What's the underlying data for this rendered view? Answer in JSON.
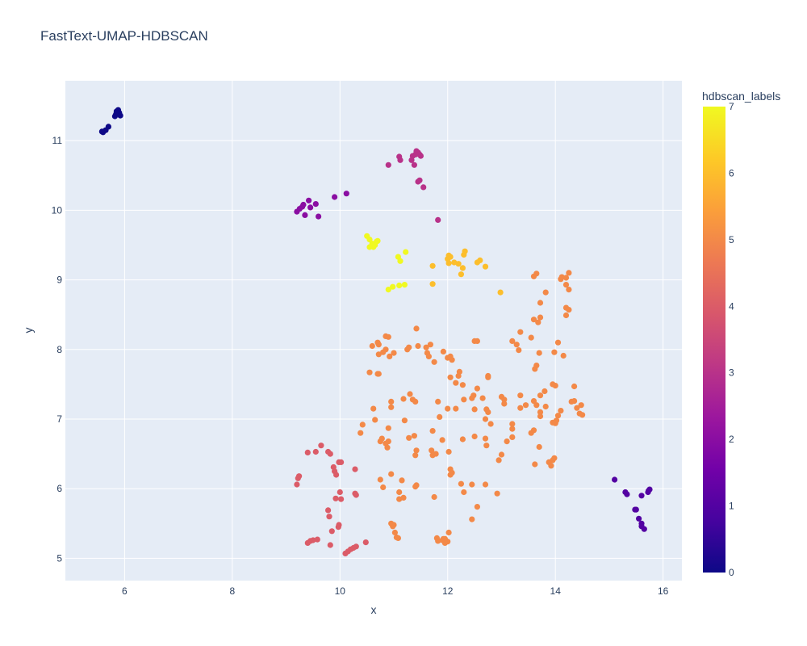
{
  "chart_data": {
    "type": "scatter",
    "title": "FastText-UMAP-HDBSCAN",
    "xlabel": "x",
    "ylabel": "y",
    "xlim": [
      4.9,
      16.35
    ],
    "ylim": [
      4.68,
      11.86
    ],
    "x_ticks": [
      6,
      8,
      10,
      12,
      14,
      16
    ],
    "y_ticks": [
      5,
      6,
      7,
      8,
      9,
      10,
      11
    ],
    "grid": true,
    "colorbar": {
      "title": "hdbscan_labels",
      "range": [
        0,
        7
      ],
      "ticks": [
        0,
        1,
        2,
        3,
        4,
        5,
        6,
        7
      ],
      "colorscale": [
        "#0d0887",
        "#46039f",
        "#7201a8",
        "#9c179e",
        "#bd3786",
        "#d8576b",
        "#ed7953",
        "#fb9f3a",
        "#fdca26",
        "#f0f921"
      ]
    },
    "colors": {
      "plot_bg": "#e5ecf6",
      "grid": "#ffffff",
      "text": "#2a3f5f"
    },
    "points": [
      [
        5.6,
        11.12,
        0
      ],
      [
        5.65,
        11.15,
        0
      ],
      [
        5.58,
        11.13,
        0
      ],
      [
        5.7,
        11.2,
        0
      ],
      [
        5.82,
        11.35,
        0
      ],
      [
        5.85,
        11.42,
        0
      ],
      [
        5.88,
        11.44,
        0
      ],
      [
        5.9,
        11.4,
        0
      ],
      [
        5.84,
        11.38,
        0
      ],
      [
        5.92,
        11.36,
        0
      ],
      [
        15.1,
        6.13,
        1
      ],
      [
        15.3,
        5.95,
        1
      ],
      [
        15.33,
        5.92,
        1
      ],
      [
        15.6,
        5.9,
        1
      ],
      [
        15.72,
        5.95,
        1
      ],
      [
        15.75,
        5.99,
        1
      ],
      [
        15.73,
        5.97,
        1
      ],
      [
        15.48,
        5.7,
        1
      ],
      [
        15.5,
        5.7,
        1
      ],
      [
        15.55,
        5.57,
        1
      ],
      [
        15.6,
        5.5,
        1
      ],
      [
        15.6,
        5.46,
        1
      ],
      [
        15.65,
        5.42,
        1
      ],
      [
        9.2,
        9.98,
        2
      ],
      [
        9.25,
        10.02,
        2
      ],
      [
        9.3,
        10.05,
        2
      ],
      [
        9.32,
        10.08,
        2
      ],
      [
        9.35,
        9.93,
        2
      ],
      [
        9.42,
        10.14,
        2
      ],
      [
        9.45,
        10.04,
        2
      ],
      [
        9.55,
        10.09,
        2
      ],
      [
        9.6,
        9.91,
        2
      ],
      [
        9.9,
        10.19,
        2
      ],
      [
        10.12,
        10.24,
        2
      ],
      [
        10.9,
        10.65,
        3
      ],
      [
        11.1,
        10.77,
        3
      ],
      [
        11.12,
        10.72,
        3
      ],
      [
        11.33,
        10.72,
        3
      ],
      [
        11.35,
        10.78,
        3
      ],
      [
        11.38,
        10.65,
        3
      ],
      [
        11.4,
        10.8,
        3
      ],
      [
        11.42,
        10.85,
        3
      ],
      [
        11.45,
        10.83,
        3
      ],
      [
        11.48,
        10.8,
        3
      ],
      [
        11.5,
        10.78,
        3
      ],
      [
        11.45,
        10.41,
        3
      ],
      [
        11.48,
        10.43,
        3
      ],
      [
        11.55,
        10.33,
        3
      ],
      [
        11.82,
        9.86,
        3
      ],
      [
        9.2,
        6.06,
        4
      ],
      [
        9.22,
        6.15,
        4
      ],
      [
        9.24,
        6.18,
        4
      ],
      [
        9.4,
        6.52,
        4
      ],
      [
        9.55,
        6.53,
        4
      ],
      [
        9.65,
        6.62,
        4
      ],
      [
        9.78,
        6.53,
        4
      ],
      [
        9.82,
        6.5,
        4
      ],
      [
        9.88,
        6.31,
        4
      ],
      [
        9.9,
        6.25,
        4
      ],
      [
        9.93,
        6.2,
        4
      ],
      [
        9.98,
        6.38,
        4
      ],
      [
        10.02,
        6.38,
        4
      ],
      [
        10.28,
        6.28,
        4
      ],
      [
        9.92,
        5.86,
        4
      ],
      [
        10.0,
        5.95,
        4
      ],
      [
        10.02,
        5.85,
        4
      ],
      [
        9.78,
        5.69,
        4
      ],
      [
        9.8,
        5.6,
        4
      ],
      [
        10.28,
        5.93,
        4
      ],
      [
        10.3,
        5.91,
        4
      ],
      [
        9.97,
        5.45,
        4
      ],
      [
        9.98,
        5.48,
        4
      ],
      [
        9.85,
        5.39,
        4
      ],
      [
        9.82,
        5.19,
        4
      ],
      [
        9.4,
        5.22,
        4
      ],
      [
        9.45,
        5.25,
        4
      ],
      [
        9.5,
        5.26,
        4
      ],
      [
        9.58,
        5.27,
        4
      ],
      [
        10.1,
        5.07,
        4
      ],
      [
        10.15,
        5.1,
        4
      ],
      [
        10.2,
        5.13,
        4
      ],
      [
        10.25,
        5.15,
        4
      ],
      [
        10.3,
        5.17,
        4
      ],
      [
        10.48,
        5.23,
        4
      ],
      [
        10.6,
        8.05,
        5
      ],
      [
        10.7,
        8.1,
        5
      ],
      [
        10.72,
        8.07,
        5
      ],
      [
        10.85,
        8.19,
        5
      ],
      [
        10.9,
        8.18,
        5
      ],
      [
        10.72,
        7.93,
        5
      ],
      [
        10.8,
        7.96,
        5
      ],
      [
        10.85,
        8.0,
        5
      ],
      [
        10.92,
        7.9,
        5
      ],
      [
        11.0,
        7.95,
        5
      ],
      [
        11.25,
        8.0,
        5
      ],
      [
        11.28,
        8.03,
        5
      ],
      [
        11.42,
        8.3,
        5
      ],
      [
        11.45,
        8.05,
        5
      ],
      [
        11.6,
        8.03,
        5
      ],
      [
        11.62,
        7.95,
        5
      ],
      [
        11.65,
        7.9,
        5
      ],
      [
        11.68,
        8.07,
        5
      ],
      [
        11.75,
        7.82,
        5
      ],
      [
        11.92,
        7.97,
        5
      ],
      [
        12.0,
        7.88,
        5
      ],
      [
        12.05,
        7.9,
        5
      ],
      [
        12.08,
        7.85,
        5
      ],
      [
        10.55,
        7.67,
        5
      ],
      [
        10.7,
        7.65,
        5
      ],
      [
        10.72,
        7.65,
        5
      ],
      [
        12.22,
        7.68,
        5
      ],
      [
        12.2,
        7.62,
        5
      ],
      [
        12.05,
        7.6,
        5
      ],
      [
        12.15,
        7.52,
        5
      ],
      [
        12.28,
        7.49,
        5
      ],
      [
        12.5,
        8.12,
        5
      ],
      [
        12.55,
        8.12,
        5
      ],
      [
        12.75,
        7.62,
        5
      ],
      [
        12.75,
        7.6,
        5
      ],
      [
        13.2,
        8.12,
        5
      ],
      [
        13.28,
        8.07,
        5
      ],
      [
        13.32,
        7.99,
        5
      ],
      [
        13.35,
        8.25,
        5
      ],
      [
        13.55,
        8.17,
        5
      ],
      [
        13.62,
        7.72,
        5
      ],
      [
        13.65,
        7.77,
        5
      ],
      [
        13.7,
        7.95,
        5
      ],
      [
        13.6,
        8.43,
        5
      ],
      [
        13.68,
        8.39,
        5
      ],
      [
        13.72,
        8.46,
        5
      ],
      [
        13.72,
        8.67,
        5
      ],
      [
        13.82,
        8.82,
        5
      ],
      [
        13.6,
        9.05,
        5
      ],
      [
        13.65,
        9.09,
        5
      ],
      [
        14.1,
        9.01,
        5
      ],
      [
        14.12,
        9.04,
        5
      ],
      [
        14.2,
        9.03,
        5
      ],
      [
        14.25,
        9.1,
        5
      ],
      [
        14.25,
        8.86,
        5
      ],
      [
        14.2,
        8.93,
        5
      ],
      [
        14.2,
        8.6,
        5
      ],
      [
        14.25,
        8.57,
        5
      ],
      [
        14.2,
        8.49,
        5
      ],
      [
        14.05,
        8.1,
        5
      ],
      [
        13.98,
        7.96,
        5
      ],
      [
        14.15,
        7.91,
        5
      ],
      [
        13.95,
        7.5,
        5
      ],
      [
        14.0,
        7.48,
        5
      ],
      [
        13.8,
        7.4,
        5
      ],
      [
        13.72,
        7.34,
        5
      ],
      [
        14.35,
        7.47,
        5
      ],
      [
        14.3,
        7.25,
        5
      ],
      [
        14.35,
        7.26,
        5
      ],
      [
        14.4,
        7.16,
        5
      ],
      [
        14.48,
        7.2,
        5
      ],
      [
        14.45,
        7.08,
        5
      ],
      [
        14.5,
        7.06,
        5
      ],
      [
        14.1,
        7.12,
        5
      ],
      [
        14.05,
        7.05,
        5
      ],
      [
        13.6,
        7.26,
        5
      ],
      [
        13.65,
        7.2,
        5
      ],
      [
        13.72,
        7.1,
        5
      ],
      [
        13.72,
        7.04,
        5
      ],
      [
        13.82,
        7.18,
        5
      ],
      [
        13.95,
        6.95,
        5
      ],
      [
        14.0,
        6.94,
        5
      ],
      [
        14.02,
        6.98,
        5
      ],
      [
        13.55,
        6.8,
        5
      ],
      [
        13.6,
        6.84,
        5
      ],
      [
        13.45,
        7.2,
        5
      ],
      [
        13.35,
        7.34,
        5
      ],
      [
        13.35,
        7.16,
        5
      ],
      [
        13.0,
        7.32,
        5
      ],
      [
        13.05,
        7.28,
        5
      ],
      [
        13.05,
        7.22,
        5
      ],
      [
        13.2,
        6.93,
        5
      ],
      [
        13.2,
        6.86,
        5
      ],
      [
        13.1,
        6.68,
        5
      ],
      [
        13.2,
        6.74,
        5
      ],
      [
        13.7,
        6.6,
        5
      ],
      [
        13.62,
        6.35,
        5
      ],
      [
        13.88,
        6.38,
        5
      ],
      [
        13.92,
        6.33,
        5
      ],
      [
        13.95,
        6.41,
        5
      ],
      [
        13.98,
        6.44,
        5
      ],
      [
        12.65,
        7.3,
        5
      ],
      [
        12.72,
        7.14,
        5
      ],
      [
        12.75,
        7.1,
        5
      ],
      [
        12.7,
        7.0,
        5
      ],
      [
        12.8,
        6.93,
        5
      ],
      [
        12.7,
        6.72,
        5
      ],
      [
        12.72,
        6.62,
        5
      ],
      [
        12.45,
        7.3,
        5
      ],
      [
        12.48,
        7.34,
        5
      ],
      [
        12.55,
        7.44,
        5
      ],
      [
        12.3,
        7.28,
        5
      ],
      [
        12.15,
        7.15,
        5
      ],
      [
        12.5,
        7.14,
        5
      ],
      [
        12.5,
        6.75,
        5
      ],
      [
        12.28,
        6.71,
        5
      ],
      [
        12.0,
        7.15,
        5
      ],
      [
        11.82,
        7.25,
        5
      ],
      [
        11.85,
        7.03,
        5
      ],
      [
        11.72,
        6.83,
        5
      ],
      [
        11.7,
        6.55,
        5
      ],
      [
        11.72,
        6.48,
        5
      ],
      [
        11.78,
        6.5,
        5
      ],
      [
        12.02,
        6.53,
        5
      ],
      [
        12.05,
        6.28,
        5
      ],
      [
        12.05,
        6.2,
        5
      ],
      [
        12.08,
        6.23,
        5
      ],
      [
        11.9,
        6.7,
        5
      ],
      [
        11.3,
        7.36,
        5
      ],
      [
        11.35,
        7.28,
        5
      ],
      [
        11.4,
        7.25,
        5
      ],
      [
        11.18,
        7.29,
        5
      ],
      [
        11.2,
        6.98,
        5
      ],
      [
        11.28,
        6.73,
        5
      ],
      [
        11.38,
        6.76,
        5
      ],
      [
        11.42,
        6.55,
        5
      ],
      [
        11.4,
        6.48,
        5
      ],
      [
        10.95,
        7.25,
        5
      ],
      [
        10.95,
        7.17,
        5
      ],
      [
        10.9,
        6.87,
        5
      ],
      [
        10.75,
        6.68,
        5
      ],
      [
        10.78,
        6.72,
        5
      ],
      [
        10.85,
        6.65,
        5
      ],
      [
        10.9,
        6.68,
        5
      ],
      [
        10.88,
        6.59,
        5
      ],
      [
        10.62,
        7.15,
        5
      ],
      [
        10.65,
        6.99,
        5
      ],
      [
        10.42,
        6.92,
        5
      ],
      [
        10.38,
        6.8,
        5
      ],
      [
        10.95,
        6.21,
        5
      ],
      [
        10.75,
        6.13,
        5
      ],
      [
        10.8,
        6.02,
        5
      ],
      [
        11.15,
        6.12,
        5
      ],
      [
        11.1,
        5.95,
        5
      ],
      [
        11.1,
        5.85,
        5
      ],
      [
        11.18,
        5.87,
        5
      ],
      [
        11.4,
        6.03,
        5
      ],
      [
        11.42,
        6.05,
        5
      ],
      [
        11.75,
        5.88,
        5
      ],
      [
        12.25,
        6.07,
        5
      ],
      [
        12.3,
        5.95,
        5
      ],
      [
        12.45,
        6.06,
        5
      ],
      [
        12.7,
        6.06,
        5
      ],
      [
        12.92,
        5.93,
        5
      ],
      [
        12.95,
        6.41,
        5
      ],
      [
        13.0,
        6.49,
        5
      ],
      [
        12.45,
        5.56,
        5
      ],
      [
        12.55,
        5.74,
        5
      ],
      [
        10.95,
        5.5,
        5
      ],
      [
        10.98,
        5.46,
        5
      ],
      [
        11.0,
        5.48,
        5
      ],
      [
        11.02,
        5.37,
        5
      ],
      [
        11.05,
        5.3,
        5
      ],
      [
        11.08,
        5.29,
        5
      ],
      [
        11.8,
        5.29,
        5
      ],
      [
        11.82,
        5.25,
        5
      ],
      [
        11.9,
        5.26,
        5
      ],
      [
        11.92,
        5.28,
        5
      ],
      [
        11.95,
        5.22,
        5
      ],
      [
        12.0,
        5.24,
        5
      ],
      [
        12.02,
        5.37,
        5
      ],
      [
        11.95,
        5.28,
        5
      ],
      [
        11.72,
        9.2,
        6
      ],
      [
        11.72,
        8.94,
        6
      ],
      [
        12.0,
        9.3,
        6
      ],
      [
        12.02,
        9.35,
        6
      ],
      [
        12.05,
        9.33,
        6
      ],
      [
        12.02,
        9.24,
        6
      ],
      [
        12.12,
        9.25,
        6
      ],
      [
        12.2,
        9.23,
        6
      ],
      [
        12.28,
        9.17,
        6
      ],
      [
        12.25,
        9.08,
        6
      ],
      [
        12.3,
        9.36,
        6
      ],
      [
        12.32,
        9.41,
        6
      ],
      [
        12.55,
        9.25,
        6
      ],
      [
        12.6,
        9.28,
        6
      ],
      [
        12.7,
        9.19,
        6
      ],
      [
        12.98,
        8.82,
        6
      ],
      [
        10.5,
        9.63,
        7
      ],
      [
        10.55,
        9.58,
        7
      ],
      [
        10.6,
        9.52,
        7
      ],
      [
        10.55,
        9.47,
        7
      ],
      [
        10.62,
        9.47,
        7
      ],
      [
        10.68,
        9.55,
        7
      ],
      [
        10.65,
        9.5,
        7
      ],
      [
        10.7,
        9.56,
        7
      ],
      [
        11.08,
        9.33,
        7
      ],
      [
        11.12,
        9.27,
        7
      ],
      [
        11.22,
        9.4,
        7
      ],
      [
        10.9,
        8.86,
        7
      ],
      [
        10.98,
        8.9,
        7
      ],
      [
        11.1,
        8.92,
        7
      ],
      [
        11.2,
        8.93,
        7
      ]
    ]
  }
}
